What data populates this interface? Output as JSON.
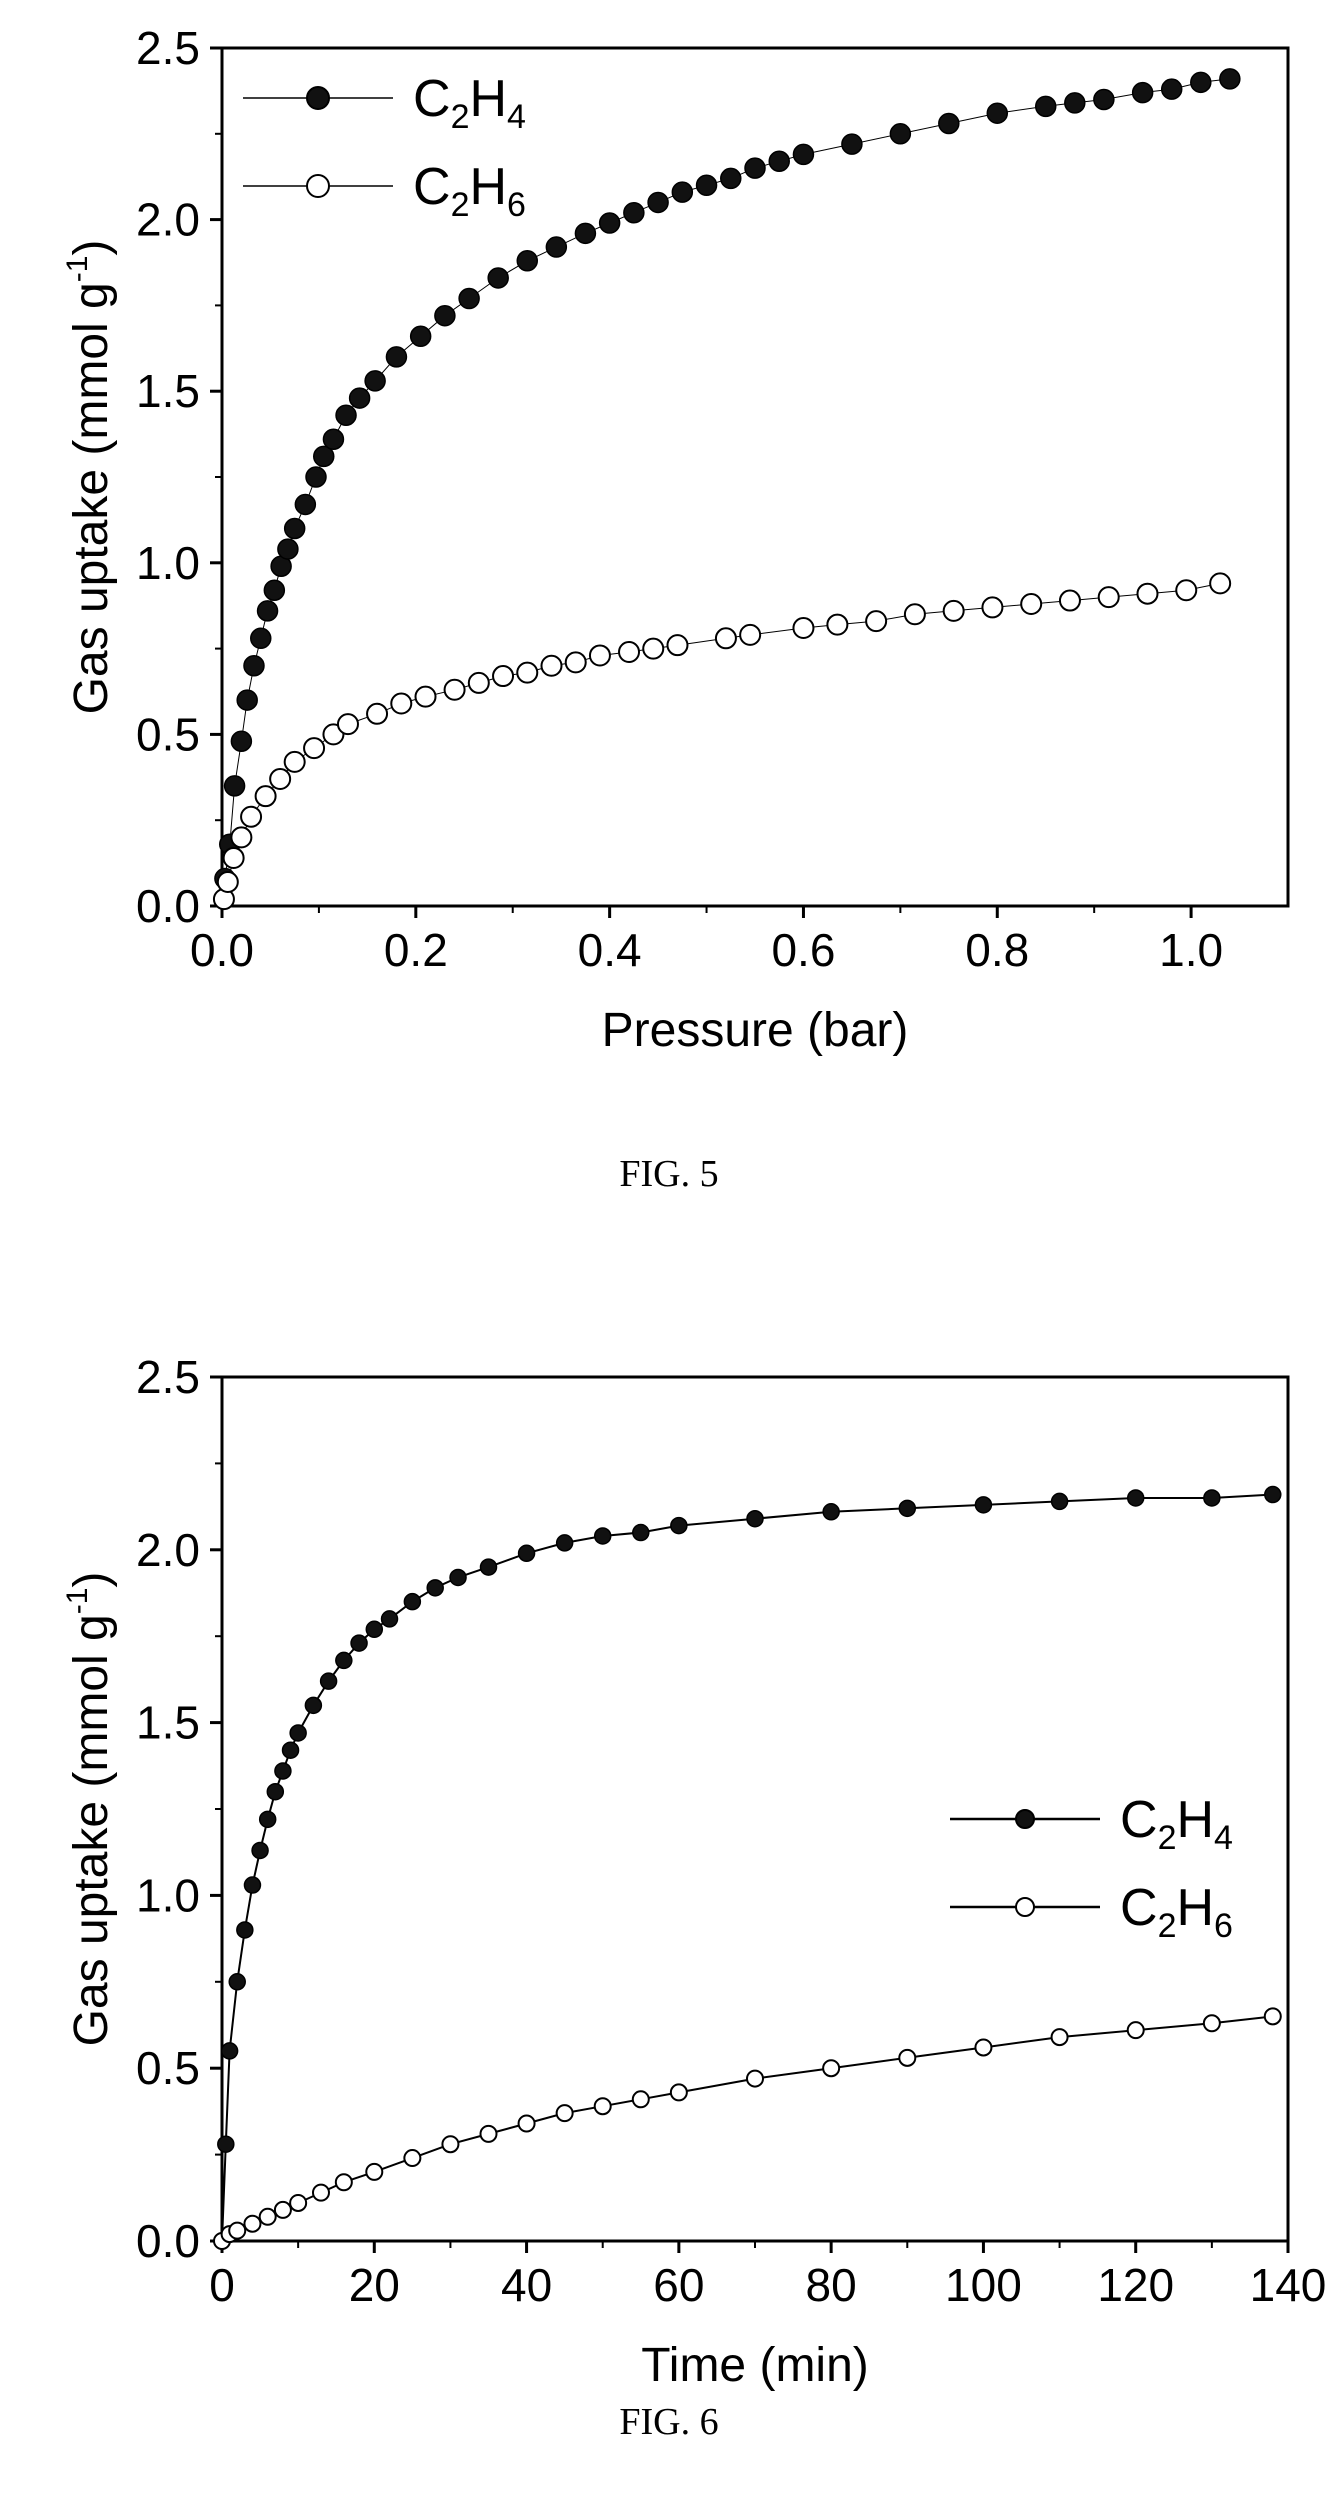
{
  "chart_data": [
    {
      "type": "scatter",
      "caption": "FIG. 5",
      "xlabel": "Pressure (bar)",
      "ylabel": "Gas uptake (mmol g",
      "ylabel_sup": "-1",
      "ylabel_close": ")",
      "xlim": [
        0,
        1.1
      ],
      "ylim": [
        0,
        2.5
      ],
      "xticks": [
        "0.0",
        "0.2",
        "0.4",
        "0.6",
        "0.8",
        "1.0"
      ],
      "yticks": [
        "0.0",
        "0.5",
        "1.0",
        "1.5",
        "2.0",
        "2.5"
      ],
      "grid": false,
      "legend_position": "top-left",
      "series": [
        {
          "name": "C2H4",
          "label_parts": [
            "C",
            "2",
            "H",
            "4"
          ],
          "marker": "filled-circle",
          "x": [
            0.003,
            0.008,
            0.013,
            0.02,
            0.026,
            0.033,
            0.04,
            0.047,
            0.054,
            0.061,
            0.068,
            0.075,
            0.086,
            0.097,
            0.105,
            0.115,
            0.128,
            0.142,
            0.158,
            0.18,
            0.205,
            0.23,
            0.255,
            0.285,
            0.315,
            0.345,
            0.375,
            0.4,
            0.425,
            0.45,
            0.475,
            0.5,
            0.525,
            0.55,
            0.575,
            0.6,
            0.65,
            0.7,
            0.75,
            0.8,
            0.85,
            0.88,
            0.91,
            0.95,
            0.98,
            1.01,
            1.04
          ],
          "y": [
            0.08,
            0.18,
            0.35,
            0.48,
            0.6,
            0.7,
            0.78,
            0.86,
            0.92,
            0.99,
            1.04,
            1.1,
            1.17,
            1.25,
            1.31,
            1.36,
            1.43,
            1.48,
            1.53,
            1.6,
            1.66,
            1.72,
            1.77,
            1.83,
            1.88,
            1.92,
            1.96,
            1.99,
            2.02,
            2.05,
            2.08,
            2.1,
            2.12,
            2.15,
            2.17,
            2.19,
            2.22,
            2.25,
            2.28,
            2.31,
            2.33,
            2.34,
            2.35,
            2.37,
            2.38,
            2.4,
            2.41
          ]
        },
        {
          "name": "C2H6",
          "label_parts": [
            "C",
            "2",
            "H",
            "6"
          ],
          "marker": "open-circle",
          "x": [
            0.002,
            0.006,
            0.012,
            0.02,
            0.03,
            0.045,
            0.06,
            0.075,
            0.095,
            0.115,
            0.13,
            0.16,
            0.185,
            0.21,
            0.24,
            0.265,
            0.29,
            0.315,
            0.34,
            0.365,
            0.39,
            0.42,
            0.445,
            0.47,
            0.52,
            0.545,
            0.6,
            0.635,
            0.675,
            0.715,
            0.755,
            0.795,
            0.835,
            0.875,
            0.915,
            0.955,
            0.995,
            1.03
          ],
          "y": [
            0.02,
            0.07,
            0.14,
            0.2,
            0.26,
            0.32,
            0.37,
            0.42,
            0.46,
            0.5,
            0.53,
            0.56,
            0.59,
            0.61,
            0.63,
            0.65,
            0.67,
            0.68,
            0.7,
            0.71,
            0.73,
            0.74,
            0.75,
            0.76,
            0.78,
            0.79,
            0.81,
            0.82,
            0.83,
            0.85,
            0.86,
            0.87,
            0.88,
            0.89,
            0.9,
            0.91,
            0.92,
            0.94
          ]
        }
      ]
    },
    {
      "type": "line",
      "caption": "FIG. 6",
      "xlabel": "Time (min)",
      "ylabel": "Gas uptake (mmol g",
      "ylabel_sup": "-1",
      "ylabel_close": ")",
      "xlim": [
        0,
        140
      ],
      "ylim": [
        0,
        2.5
      ],
      "xticks": [
        "0",
        "20",
        "40",
        "60",
        "80",
        "100",
        "120",
        "140"
      ],
      "yticks": [
        "0.0",
        "0.5",
        "1.0",
        "1.5",
        "2.0",
        "2.5"
      ],
      "grid": false,
      "legend_position": "right-center",
      "series": [
        {
          "name": "C2H4",
          "label_parts": [
            "C",
            "2",
            "H",
            "4"
          ],
          "marker": "filled-circle",
          "x": [
            0,
            0.5,
            1,
            2,
            3,
            4,
            5,
            6,
            7,
            8,
            9,
            10,
            12,
            14,
            16,
            18,
            20,
            22,
            25,
            28,
            31,
            35,
            40,
            45,
            50,
            55,
            60,
            70,
            80,
            90,
            100,
            110,
            120,
            130,
            138
          ],
          "y": [
            0.0,
            0.28,
            0.55,
            0.75,
            0.9,
            1.03,
            1.13,
            1.22,
            1.3,
            1.36,
            1.42,
            1.47,
            1.55,
            1.62,
            1.68,
            1.73,
            1.77,
            1.8,
            1.85,
            1.89,
            1.92,
            1.95,
            1.99,
            2.02,
            2.04,
            2.05,
            2.07,
            2.09,
            2.11,
            2.12,
            2.13,
            2.14,
            2.15,
            2.15,
            2.16
          ]
        },
        {
          "name": "C2H6",
          "label_parts": [
            "C",
            "2",
            "H",
            "6"
          ],
          "marker": "open-circle",
          "x": [
            0,
            1,
            2,
            4,
            6,
            8,
            10,
            13,
            16,
            20,
            25,
            30,
            35,
            40,
            45,
            50,
            55,
            60,
            70,
            80,
            90,
            100,
            110,
            120,
            130,
            138
          ],
          "y": [
            0.0,
            0.02,
            0.03,
            0.05,
            0.07,
            0.09,
            0.11,
            0.14,
            0.17,
            0.2,
            0.24,
            0.28,
            0.31,
            0.34,
            0.37,
            0.39,
            0.41,
            0.43,
            0.47,
            0.5,
            0.53,
            0.56,
            0.59,
            0.61,
            0.63,
            0.65
          ]
        }
      ]
    }
  ]
}
